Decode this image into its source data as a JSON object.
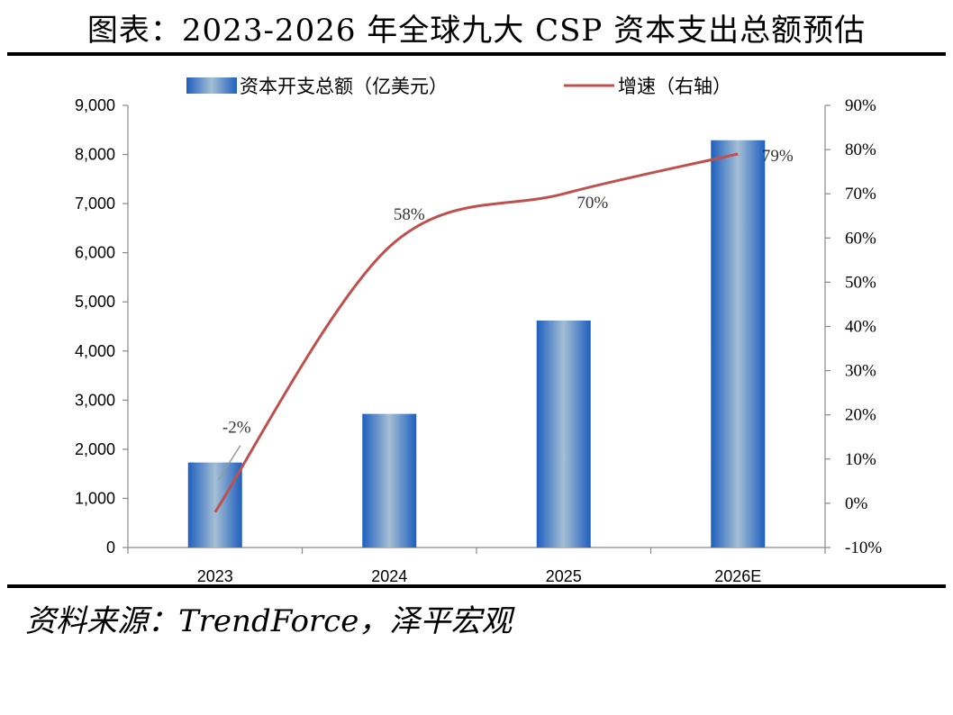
{
  "title": "图表：2023-2026 年全球九大 CSP 资本支出总额预估",
  "source": "资料来源：TrendForce，泽平宏观",
  "chart_data": {
    "type": "bar",
    "categories": [
      "2023",
      "2024",
      "2025",
      "2026E"
    ],
    "series": [
      {
        "name": "资本开支总额（亿美元）",
        "type": "bar",
        "axis": "left",
        "values": [
          1730,
          2720,
          4620,
          8290
        ],
        "color": "#2f6cc0"
      },
      {
        "name": "增速（右轴）",
        "type": "line",
        "axis": "right",
        "values": [
          -2,
          58,
          70,
          79
        ],
        "labels": [
          "-2%",
          "58%",
          "70%",
          "79%"
        ],
        "color": "#c0504d"
      }
    ],
    "y_left": {
      "min": 0,
      "max": 9000,
      "ticks": [
        0,
        1000,
        2000,
        3000,
        4000,
        5000,
        6000,
        7000,
        8000,
        9000
      ],
      "tick_labels": [
        "0",
        "1,000",
        "2,000",
        "3,000",
        "4,000",
        "5,000",
        "6,000",
        "7,000",
        "8,000",
        "9,000"
      ]
    },
    "y_right": {
      "min": -10,
      "max": 90,
      "ticks": [
        -10,
        0,
        10,
        20,
        30,
        40,
        50,
        60,
        70,
        80,
        90
      ],
      "tick_labels": [
        "-10%",
        "0%",
        "10%",
        "20%",
        "30%",
        "40%",
        "50%",
        "60%",
        "70%",
        "80%",
        "90%"
      ]
    },
    "legend_position": "top",
    "grid": false
  }
}
